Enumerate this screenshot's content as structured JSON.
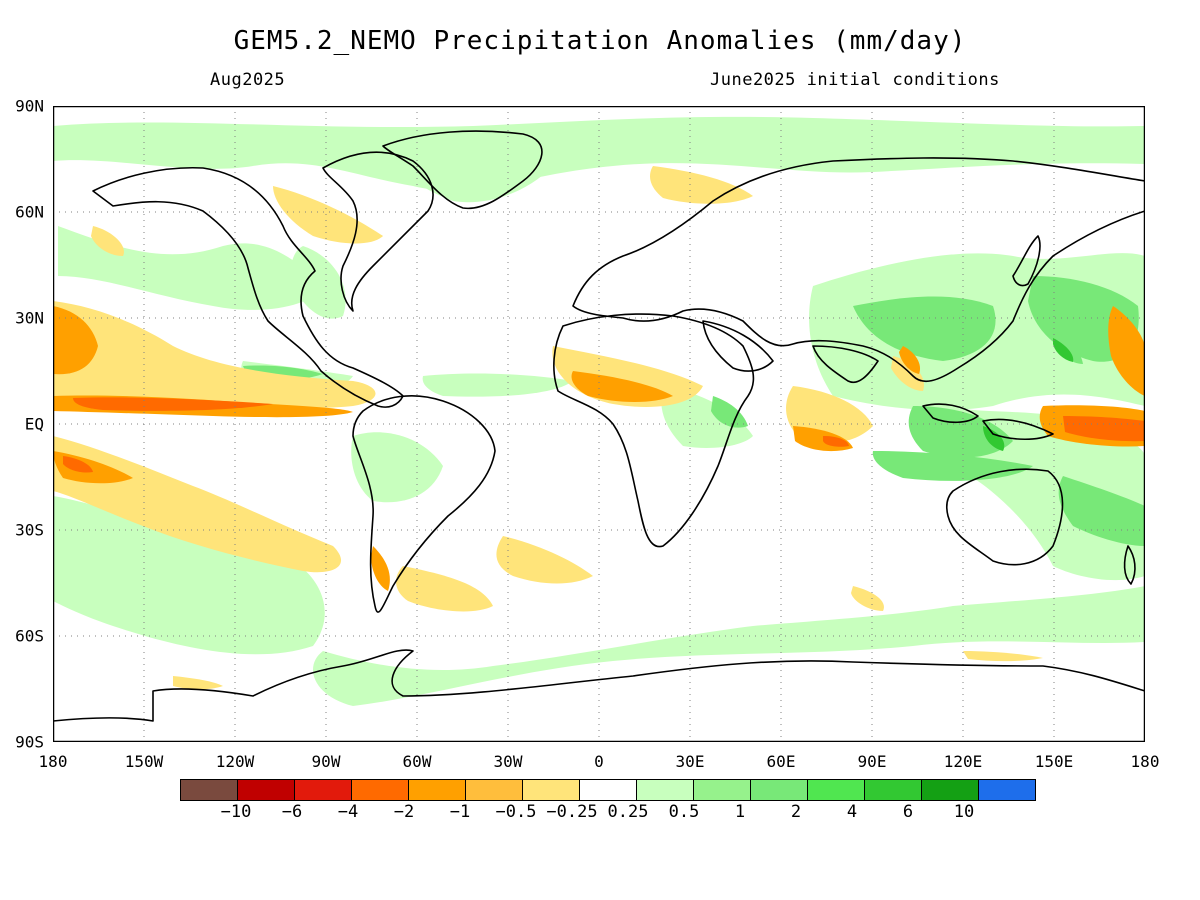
{
  "map": {
    "title": "GEM5.2_NEMO Precipitation Anomalies (mm/day)",
    "subtitle_left": "Aug2025",
    "subtitle_right": "June2025 initial conditions",
    "lat_labels": [
      "90N",
      "60N",
      "30N",
      "EQ",
      "30S",
      "60S",
      "90S"
    ],
    "lon_labels": [
      "180",
      "150W",
      "120W",
      "90W",
      "60W",
      "30W",
      "0",
      "30E",
      "60E",
      "90E",
      "120E",
      "150E",
      "180"
    ],
    "colorbar": {
      "colors": [
        "#7a4a3e",
        "#c00000",
        "#e21a0c",
        "#ff6a00",
        "#ffa000",
        "#ffbe3c",
        "#ffe47a",
        "#ffffff",
        "#c8ffbe",
        "#96f28c",
        "#78e878",
        "#50e650",
        "#32c832",
        "#14a014",
        "#1e6eeb"
      ],
      "labels": [
        "−10",
        "−6",
        "−4",
        "−2",
        "−1",
        "−0.5",
        "−0.25",
        "0.25",
        "0.5",
        "1",
        "2",
        "4",
        "6",
        "10"
      ]
    }
  }
}
